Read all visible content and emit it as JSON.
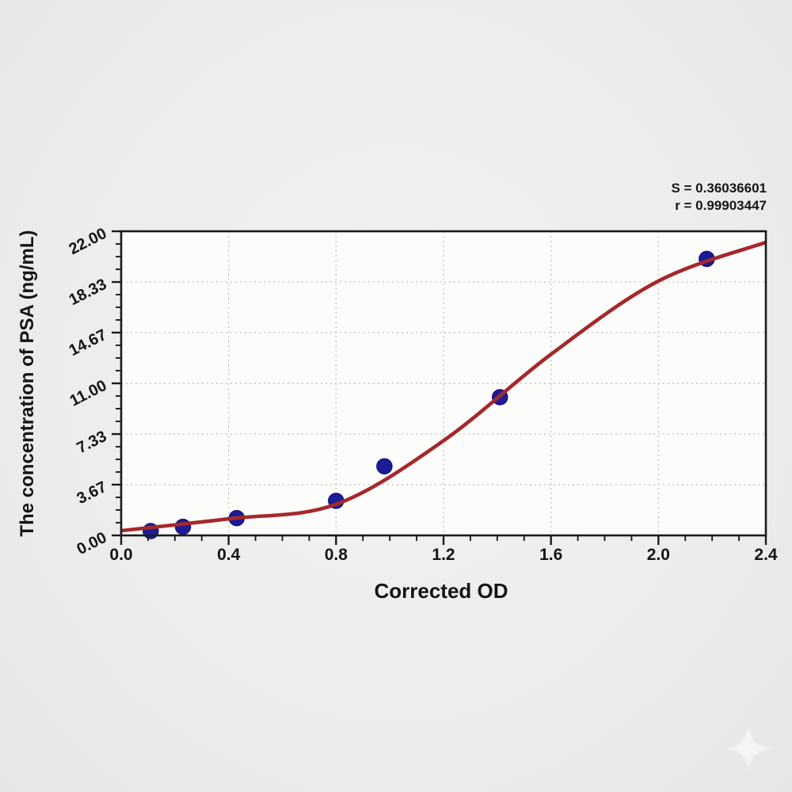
{
  "page": {
    "background": "#edeeec"
  },
  "chart_data": {
    "type": "scatter",
    "subtype": "elisa-standard-curve",
    "title": "",
    "xlabel": "Corrected OD",
    "ylabel": "The concentration of PSA (ng/mL)",
    "annotation": {
      "s_label": "S = 0.36036601",
      "r_label": "r = 0.99903447"
    },
    "xlim": [
      0,
      2.4
    ],
    "ylim": [
      0,
      22
    ],
    "x_ticks": [
      0,
      0.4,
      0.8,
      1.2,
      1.6,
      2.0,
      2.4
    ],
    "x_tick_labels": [
      "0.0",
      "0.4",
      "0.8",
      "1.2",
      "1.6",
      "2.0",
      "2.4"
    ],
    "y_ticks": [
      0,
      3.67,
      7.33,
      11.0,
      14.67,
      18.33,
      22.0
    ],
    "y_tick_labels": [
      "0.00",
      "3.67",
      "7.33",
      "11.00",
      "14.67",
      "18.33",
      "22.00"
    ],
    "minor_ticks_per_major_interval": 3,
    "grid": "dotted gridlines at major ticks, white plot background, black box frame",
    "legend": null,
    "series": [
      {
        "name": "standards",
        "type": "scatter",
        "color": "#1c1c99",
        "points": [
          {
            "x": 0.11,
            "y": 0.313
          },
          {
            "x": 0.23,
            "y": 0.625
          },
          {
            "x": 0.43,
            "y": 1.25
          },
          {
            "x": 0.8,
            "y": 2.5
          },
          {
            "x": 0.98,
            "y": 5.0
          },
          {
            "x": 1.41,
            "y": 10.0
          },
          {
            "x": 2.18,
            "y": 20.0
          }
        ]
      },
      {
        "name": "4PL fit curve",
        "type": "line",
        "color": "#a5282c",
        "points": [
          {
            "x": 0.0,
            "y": 0.34
          },
          {
            "x": 0.4,
            "y": 1.2
          },
          {
            "x": 0.8,
            "y": 2.25
          },
          {
            "x": 1.2,
            "y": 6.85
          },
          {
            "x": 1.6,
            "y": 13.1
          },
          {
            "x": 2.0,
            "y": 18.4
          },
          {
            "x": 2.4,
            "y": 21.2
          }
        ]
      }
    ],
    "colors": {
      "curve": "#a5282c",
      "point": "#1c1c99",
      "point_edge": "#13137a",
      "frame": "#1b1b1b",
      "grid": "#c6c6c6",
      "plot_bg": "#fcfcfb",
      "text": "#141414"
    }
  },
  "watermark": {
    "icon": "sparkle-star-icon",
    "color": "#ffffff"
  }
}
